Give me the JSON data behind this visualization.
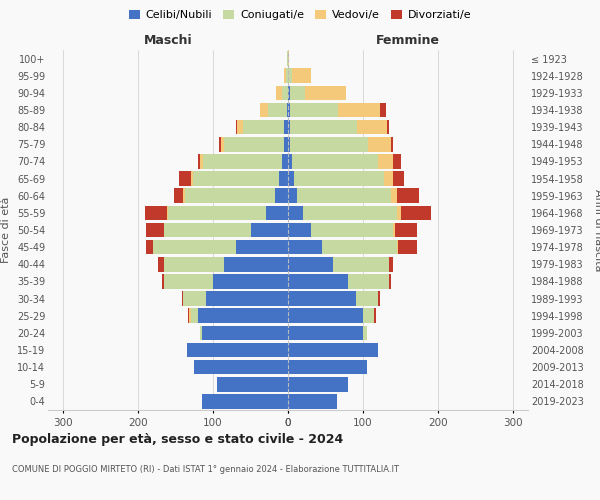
{
  "age_groups": [
    "0-4",
    "5-9",
    "10-14",
    "15-19",
    "20-24",
    "25-29",
    "30-34",
    "35-39",
    "40-44",
    "45-49",
    "50-54",
    "55-59",
    "60-64",
    "65-69",
    "70-74",
    "75-79",
    "80-84",
    "85-89",
    "90-94",
    "95-99",
    "100+"
  ],
  "birth_years": [
    "2019-2023",
    "2014-2018",
    "2009-2013",
    "2004-2008",
    "1999-2003",
    "1994-1998",
    "1989-1993",
    "1984-1988",
    "1979-1983",
    "1974-1978",
    "1969-1973",
    "1964-1968",
    "1959-1963",
    "1954-1958",
    "1949-1953",
    "1944-1948",
    "1939-1943",
    "1934-1938",
    "1929-1933",
    "1924-1928",
    "≤ 1923"
  ],
  "maschi": {
    "celibi": [
      115,
      95,
      125,
      135,
      115,
      120,
      110,
      100,
      85,
      70,
      50,
      30,
      18,
      12,
      8,
      5,
      5,
      2,
      0,
      0,
      0
    ],
    "coniugati": [
      0,
      0,
      0,
      0,
      2,
      10,
      30,
      65,
      80,
      110,
      115,
      130,
      120,
      115,
      105,
      80,
      55,
      25,
      8,
      3,
      1
    ],
    "vedovi": [
      0,
      0,
      0,
      0,
      0,
      2,
      0,
      0,
      0,
      0,
      0,
      1,
      2,
      3,
      5,
      5,
      8,
      10,
      8,
      2,
      0
    ],
    "divorziati": [
      0,
      0,
      0,
      0,
      0,
      2,
      2,
      3,
      8,
      10,
      25,
      30,
      12,
      15,
      2,
      2,
      2,
      0,
      0,
      0,
      0
    ]
  },
  "femmine": {
    "celibi": [
      65,
      80,
      105,
      120,
      100,
      100,
      90,
      80,
      60,
      45,
      30,
      20,
      12,
      8,
      5,
      2,
      2,
      2,
      2,
      0,
      0
    ],
    "coniugati": [
      0,
      0,
      0,
      0,
      5,
      15,
      30,
      55,
      75,
      100,
      110,
      125,
      125,
      120,
      115,
      105,
      90,
      65,
      20,
      5,
      0
    ],
    "vedovi": [
      0,
      0,
      0,
      0,
      0,
      0,
      0,
      0,
      0,
      2,
      2,
      5,
      8,
      12,
      20,
      30,
      40,
      55,
      55,
      25,
      1
    ],
    "divorziati": [
      0,
      0,
      0,
      0,
      0,
      2,
      2,
      2,
      5,
      25,
      30,
      40,
      30,
      15,
      10,
      3,
      2,
      8,
      0,
      0,
      0
    ]
  },
  "colors": {
    "celibi": "#4472c4",
    "coniugati": "#c5d9a0",
    "vedovi": "#f5c97a",
    "divorziati": "#c0392b"
  },
  "xlim": 320,
  "title": "Popolazione per età, sesso e stato civile - 2024",
  "subtitle": "COMUNE DI POGGIO MIRTETO (RI) - Dati ISTAT 1° gennaio 2024 - Elaborazione TUTTITALIA.IT",
  "ylabel_left": "Fasce di età",
  "ylabel_right": "Anni di nascita",
  "xlabel_left": "Maschi",
  "xlabel_right": "Femmine",
  "bg_color": "#f9f9f9",
  "grid_color": "#cccccc"
}
